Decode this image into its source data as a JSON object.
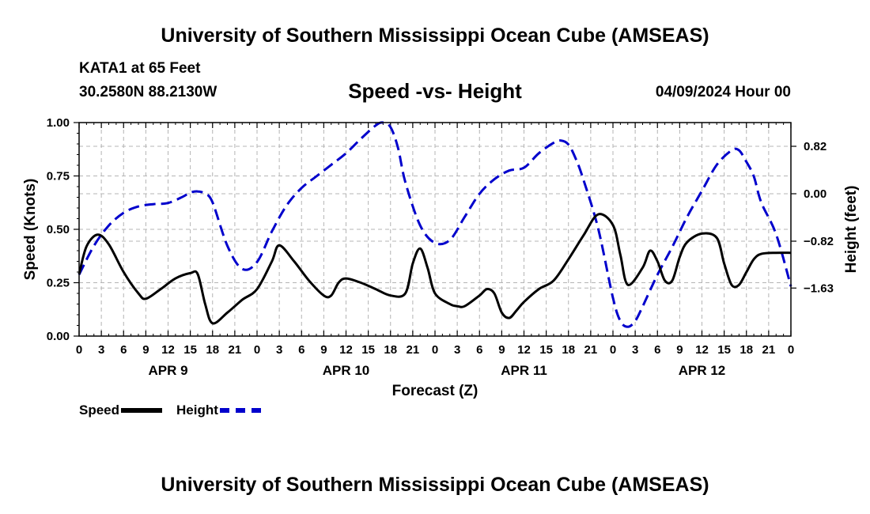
{
  "header": {
    "title": "University of Southern Mississippi Ocean Cube (AMSEAS)",
    "station": "KATA1 at 65 Feet",
    "coords": "30.2580N  88.2130W",
    "subtitle": "Speed -vs- Height",
    "datetime": "04/09/2024 Hour 00"
  },
  "footer": {
    "title": "University of Southern Mississippi Ocean Cube (AMSEAS)"
  },
  "legend": {
    "speed_label": "Speed",
    "height_label": "Height"
  },
  "colors": {
    "speed": "#000000",
    "height": "#0000cc",
    "grid": "#b4b4b4"
  },
  "chart_data": {
    "type": "line",
    "xlabel": "Forecast (Z)",
    "ylabel": "Speed (Knots)",
    "y2label": "Height (feet)",
    "xlim": [
      0,
      96
    ],
    "ylim": [
      0,
      1
    ],
    "y2lim": [
      -2.46,
      1.23
    ],
    "x_tick_step": 3,
    "x_tick_labels": [
      "0",
      "3",
      "6",
      "9",
      "12",
      "15",
      "18",
      "21",
      "0",
      "3",
      "6",
      "9",
      "12",
      "15",
      "18",
      "21",
      "0",
      "3",
      "6",
      "9",
      "12",
      "15",
      "18",
      "21",
      "0",
      "3",
      "6",
      "9",
      "12",
      "15",
      "18",
      "21",
      "0"
    ],
    "y_ticks": [
      0,
      0.25,
      0.5,
      0.75,
      1.0
    ],
    "y_tick_labels": [
      "0.00",
      "0.25",
      "0.50",
      "0.75",
      "1.00"
    ],
    "y2_ticks": [
      0.82,
      0.0,
      -0.82,
      -1.63
    ],
    "y2_tick_labels": [
      "0.82",
      "0.00",
      "−0.82",
      "−1.63"
    ],
    "day_labels": [
      {
        "label": "APR 9",
        "x": 12
      },
      {
        "label": "APR 10",
        "x": 36
      },
      {
        "label": "APR 11",
        "x": 60
      },
      {
        "label": "APR 12",
        "x": 84
      }
    ],
    "series": [
      {
        "name": "Speed",
        "axis": "left",
        "x": [
          0,
          1,
          2.5,
          4,
          6,
          8,
          9,
          11,
          13,
          15,
          16,
          17,
          18,
          20,
          22,
          24,
          26,
          27,
          29,
          31,
          33,
          34,
          35,
          36,
          38,
          40,
          42,
          44,
          45,
          46,
          47,
          48,
          50,
          51,
          52,
          54,
          55,
          56,
          57,
          58,
          59,
          60,
          62,
          64,
          66,
          68,
          70,
          72,
          73,
          74,
          76,
          77,
          78,
          79,
          80,
          81,
          82,
          84,
          86,
          87,
          88,
          89,
          90,
          91,
          92,
          94,
          96
        ],
        "values": [
          0.29,
          0.42,
          0.475,
          0.43,
          0.3,
          0.2,
          0.175,
          0.22,
          0.27,
          0.295,
          0.29,
          0.15,
          0.06,
          0.11,
          0.17,
          0.22,
          0.35,
          0.425,
          0.35,
          0.26,
          0.19,
          0.19,
          0.25,
          0.27,
          0.25,
          0.22,
          0.19,
          0.2,
          0.34,
          0.41,
          0.32,
          0.2,
          0.15,
          0.14,
          0.14,
          0.19,
          0.22,
          0.2,
          0.11,
          0.085,
          0.12,
          0.16,
          0.22,
          0.26,
          0.36,
          0.47,
          0.57,
          0.52,
          0.38,
          0.24,
          0.32,
          0.4,
          0.35,
          0.26,
          0.26,
          0.37,
          0.44,
          0.48,
          0.46,
          0.34,
          0.24,
          0.24,
          0.3,
          0.36,
          0.385,
          0.39,
          0.39
        ]
      },
      {
        "name": "Height",
        "axis": "right",
        "x": [
          0,
          2,
          4,
          6,
          8,
          10,
          12,
          14,
          15,
          16,
          17,
          18,
          20,
          22,
          24,
          26,
          28,
          30,
          32,
          34,
          36,
          38,
          40,
          41,
          42,
          43,
          44,
          46,
          48,
          50,
          52,
          54,
          56,
          58,
          60,
          62,
          64,
          65,
          66,
          67,
          68,
          70,
          72,
          73,
          74,
          75,
          76,
          78,
          80,
          82,
          84,
          86,
          88,
          89,
          90,
          91,
          92,
          94,
          96
        ],
        "values": [
          -1.4,
          -0.9,
          -0.55,
          -0.33,
          -0.22,
          -0.18,
          -0.16,
          -0.05,
          0.02,
          0.04,
          0.0,
          -0.15,
          -0.9,
          -1.3,
          -1.18,
          -0.65,
          -0.2,
          0.1,
          0.3,
          0.5,
          0.7,
          0.95,
          1.18,
          1.23,
          1.15,
          0.8,
          0.2,
          -0.55,
          -0.85,
          -0.8,
          -0.4,
          0.0,
          0.25,
          0.4,
          0.45,
          0.7,
          0.88,
          0.92,
          0.85,
          0.6,
          0.25,
          -0.6,
          -1.8,
          -2.2,
          -2.3,
          -2.2,
          -1.95,
          -1.4,
          -0.92,
          -0.4,
          0.05,
          0.5,
          0.75,
          0.75,
          0.55,
          0.3,
          -0.15,
          -0.7,
          -1.6
        ]
      }
    ]
  }
}
